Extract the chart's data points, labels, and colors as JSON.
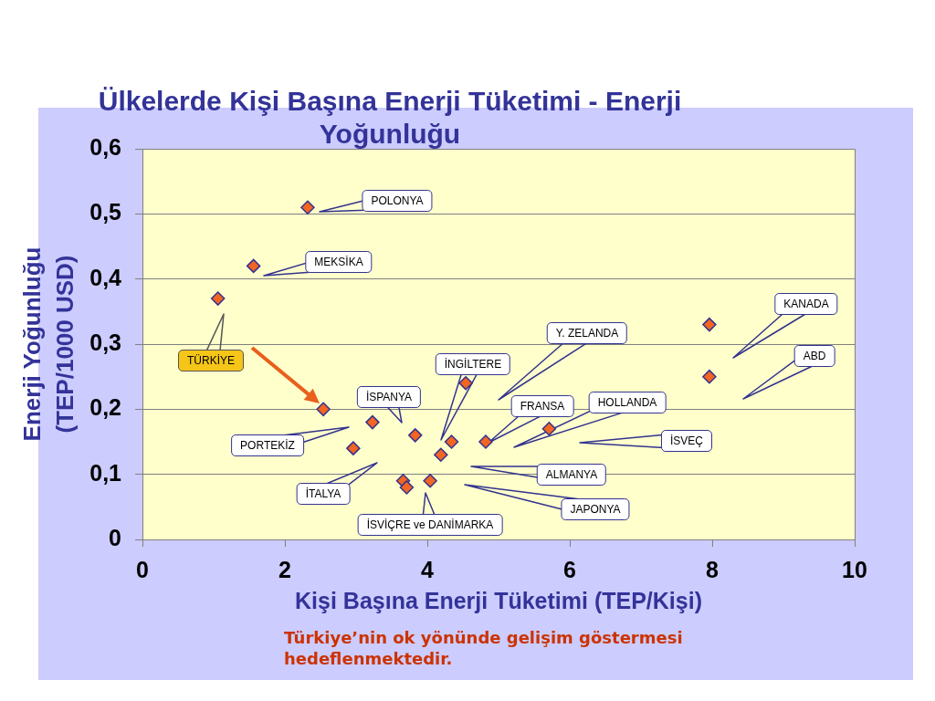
{
  "chart_data": {
    "type": "scatter",
    "title": "Ülkelerde Kişi Başına Enerji Tüketimi - Enerji Yoğunluğu",
    "xlabel": "Kişi Başına Enerji Tüketimi (TEP/Kişi)",
    "ylabel": "Enerji Yoğunluğu (TEP/1000 USD)",
    "series": [
      {
        "color": "#f26522",
        "x": [
          1.06,
          1.56,
          2.32,
          2.54,
          2.96,
          3.23,
          3.66,
          3.71,
          3.83,
          4.04,
          4.19,
          4.34,
          4.54,
          4.82,
          5.71,
          7.96,
          7.96
        ],
        "values": [
          0.37,
          0.42,
          0.51,
          0.2,
          0.14,
          0.18,
          0.09,
          0.08,
          0.16,
          0.09,
          0.13,
          0.15,
          0.24,
          0.15,
          0.17,
          0.33,
          0.25
        ]
      }
    ],
    "xlim": [
      0,
      10
    ],
    "ylim": [
      0,
      0.6
    ],
    "xticks": [
      0,
      2,
      4,
      6,
      8,
      10
    ],
    "yticks": [
      0,
      {
        "value": 0.1,
        "label": "0,1"
      },
      {
        "value": 0.2,
        "label": "0,2"
      },
      {
        "value": 0.3,
        "label": "0,3"
      },
      {
        "value": 0.4,
        "label": "0,4"
      },
      {
        "value": 0.5,
        "label": "0,5"
      },
      {
        "value": 0.6,
        "label": "0,6"
      }
    ],
    "grid": "y",
    "marker": "diamond",
    "annotations": [
      "POLONYA",
      "MEKSİKA",
      "TÜRKİYE",
      "PORTEKİZ",
      "İSPANYA",
      "İTALYA",
      "İSVİÇRE ve DANİMARKA",
      "İNGİLTERE",
      "Y. ZELANDA",
      "FRANSA",
      "HOLLANDA",
      "İSVEÇ",
      "ALMANYA",
      "JAPONYA",
      "KANADA",
      "ABD",
      "Türkiye’nin ok yönünde gelişim göstermesi hedeflenmektedir."
    ]
  }
}
